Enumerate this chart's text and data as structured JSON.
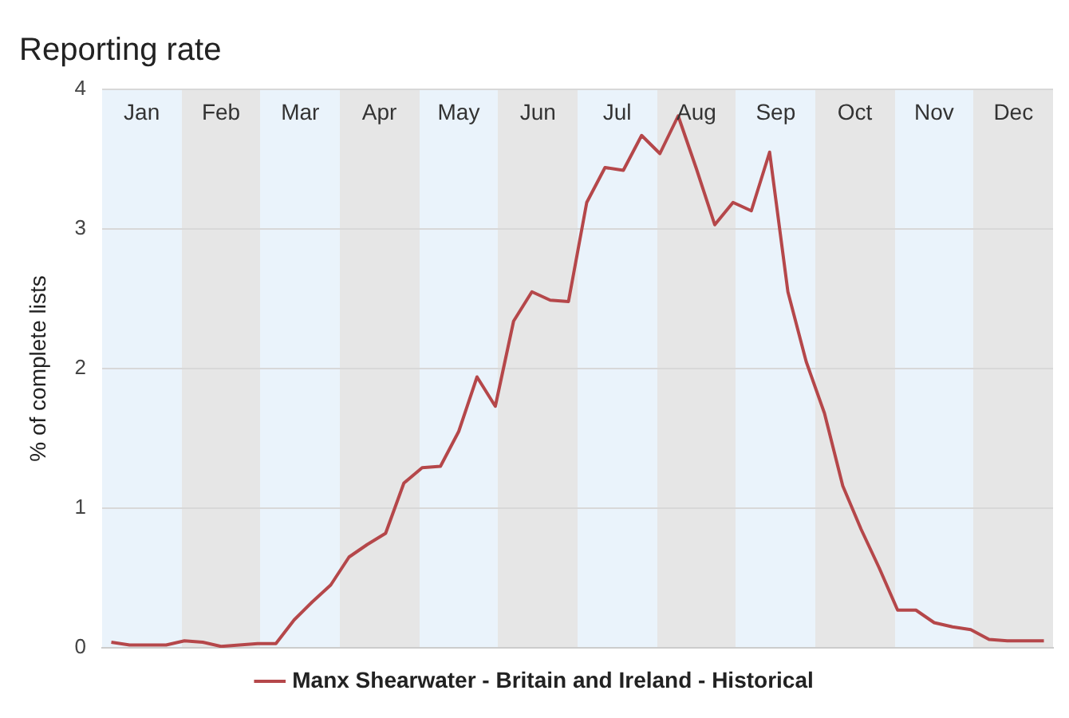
{
  "chart_data": {
    "type": "line",
    "title": "Reporting rate",
    "ylabel": "% of complete lists",
    "categories": [
      null,
      null,
      null,
      null,
      null,
      null,
      null,
      null,
      null,
      null,
      null,
      null,
      null,
      null,
      null,
      null,
      null,
      null,
      null,
      null,
      null,
      null,
      null,
      null,
      null,
      null,
      null,
      null,
      null,
      null,
      null,
      null,
      null,
      null,
      null,
      null,
      null,
      null,
      null,
      null,
      null,
      null,
      null,
      null,
      null,
      null,
      null,
      null,
      null,
      null,
      null,
      null
    ],
    "series": [
      {
        "name": "Manx Shearwater - Britain and Ireland - Historical",
        "color": "#b5474a",
        "values": [
          0.04,
          0.02,
          0.02,
          0.02,
          0.05,
          0.04,
          0.01,
          0.02,
          0.03,
          0.03,
          0.2,
          0.33,
          0.45,
          0.65,
          0.74,
          0.82,
          1.18,
          1.29,
          1.3,
          1.55,
          1.94,
          1.73,
          2.34,
          2.55,
          2.49,
          2.48,
          3.19,
          3.44,
          3.42,
          3.67,
          3.54,
          3.81,
          3.43,
          3.03,
          3.19,
          3.13,
          3.55,
          2.55,
          2.05,
          1.68,
          1.16,
          0.85,
          0.57,
          0.27,
          0.27,
          0.18,
          0.15,
          0.13,
          0.06,
          0.05,
          0.05,
          0.05
        ]
      }
    ],
    "ylim": [
      0,
      4
    ],
    "yticks": [
      0,
      1,
      2,
      3,
      4
    ],
    "grid": "y",
    "legend": "bottom",
    "marker": "none",
    "annotations": [
      "Jan",
      "Feb",
      "Mar",
      "Apr",
      "May",
      "Jun",
      "Jul",
      "Aug",
      "Sep",
      "Oct",
      "Nov",
      "Dec"
    ]
  }
}
